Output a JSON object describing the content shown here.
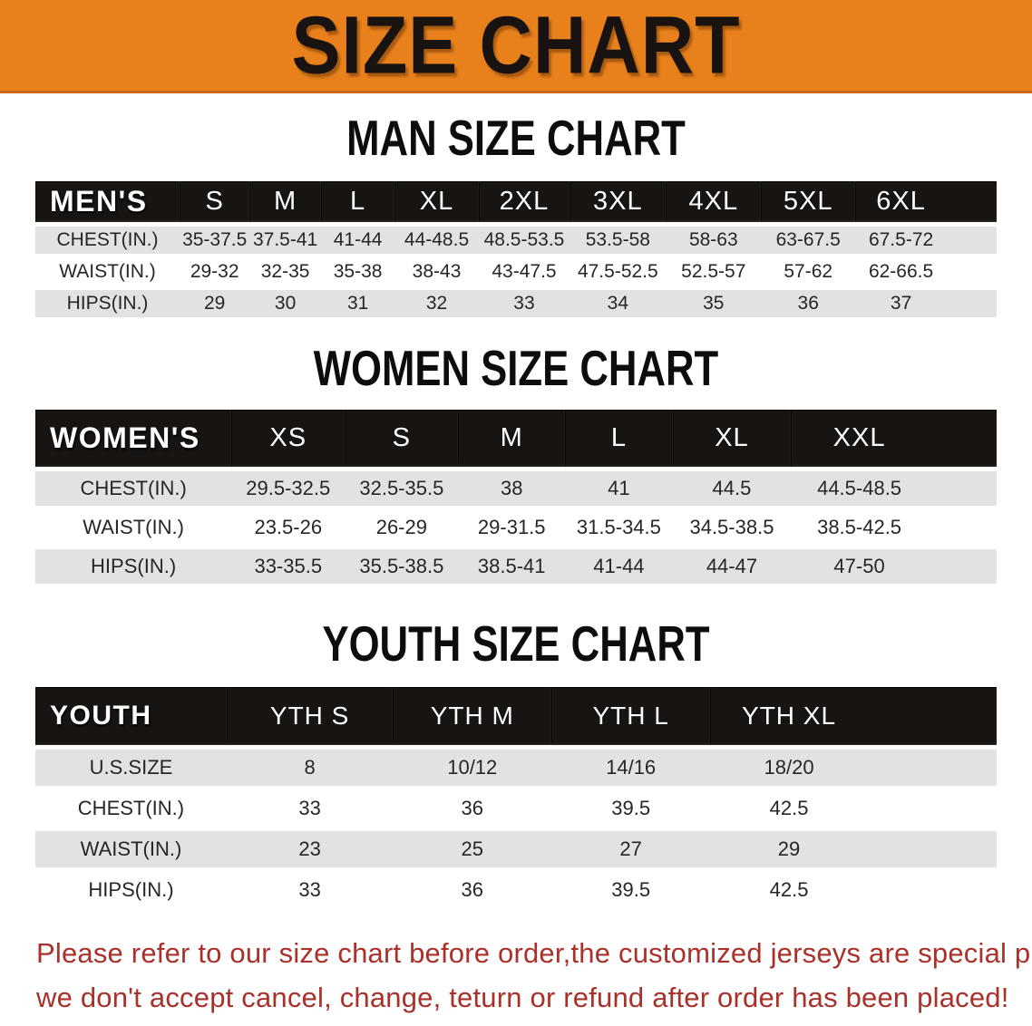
{
  "banner": {
    "title": "SIZE CHART"
  },
  "sections": [
    {
      "id": "men",
      "heading": "MAN SIZE CHART",
      "table": {
        "corner_label": "MEN'S",
        "size_headers": [
          "S",
          "M",
          "L",
          "XL",
          "2XL",
          "3XL",
          "4XL",
          "5XL",
          "6XL"
        ],
        "rows": [
          {
            "label": "CHEST(IN.)",
            "values": [
              "35-37.5",
              "37.5-41",
              "41-44",
              "44-48.5",
              "48.5-53.5",
              "53.5-58",
              "58-63",
              "63-67.5",
              "67.5-72"
            ]
          },
          {
            "label": "WAIST(IN.)",
            "values": [
              "29-32",
              "32-35",
              "35-38",
              "38-43",
              "43-47.5",
              "47.5-52.5",
              "52.5-57",
              "57-62",
              "62-66.5"
            ]
          },
          {
            "label": "HIPS(IN.)",
            "values": [
              "29",
              "30",
              "31",
              "32",
              "33",
              "34",
              "35",
              "36",
              "37"
            ]
          }
        ]
      }
    },
    {
      "id": "women",
      "heading": "WOMEN SIZE CHART",
      "table": {
        "corner_label": "WOMEN'S",
        "size_headers": [
          "XS",
          "S",
          "M",
          "L",
          "XL",
          "XXL"
        ],
        "rows": [
          {
            "label": "CHEST(IN.)",
            "values": [
              "29.5-32.5",
              "32.5-35.5",
              "38",
              "41",
              "44.5",
              "44.5-48.5"
            ]
          },
          {
            "label": "WAIST(IN.)",
            "values": [
              "23.5-26",
              "26-29",
              "29-31.5",
              "31.5-34.5",
              "34.5-38.5",
              "38.5-42.5"
            ]
          },
          {
            "label": "HIPS(IN.)",
            "values": [
              "33-35.5",
              "35.5-38.5",
              "38.5-41",
              "41-44",
              "44-47",
              "47-50"
            ]
          }
        ]
      }
    },
    {
      "id": "youth",
      "heading": "YOUTH SIZE CHART",
      "table": {
        "corner_label": "YOUTH",
        "size_headers": [
          "YTH S",
          "YTH M",
          "YTH L",
          "YTH XL"
        ],
        "rows": [
          {
            "label": "U.S.SIZE",
            "values": [
              "8",
              "10/12",
              "14/16",
              "18/20"
            ]
          },
          {
            "label": "CHEST(IN.)",
            "values": [
              "33",
              "36",
              "39.5",
              "42.5"
            ]
          },
          {
            "label": "WAIST(IN.)",
            "values": [
              "23",
              "25",
              "27",
              "29"
            ]
          },
          {
            "label": "HIPS(IN.)",
            "values": [
              "33",
              "36",
              "39.5",
              "42.5"
            ]
          }
        ]
      }
    }
  ],
  "footer": {
    "line1": "Please refer to our size chart before order,the customized jerseys are special products,",
    "line2": "we don't accept cancel, change, teturn or refund after order has been placed!"
  },
  "colors": {
    "banner_bg": "#E8811C",
    "banner_edge": "#C76711",
    "banner_text": "#181210",
    "header_bg": "#171412",
    "row_alt_bg": "#E2E2E2",
    "footer_text": "#A9312A"
  }
}
